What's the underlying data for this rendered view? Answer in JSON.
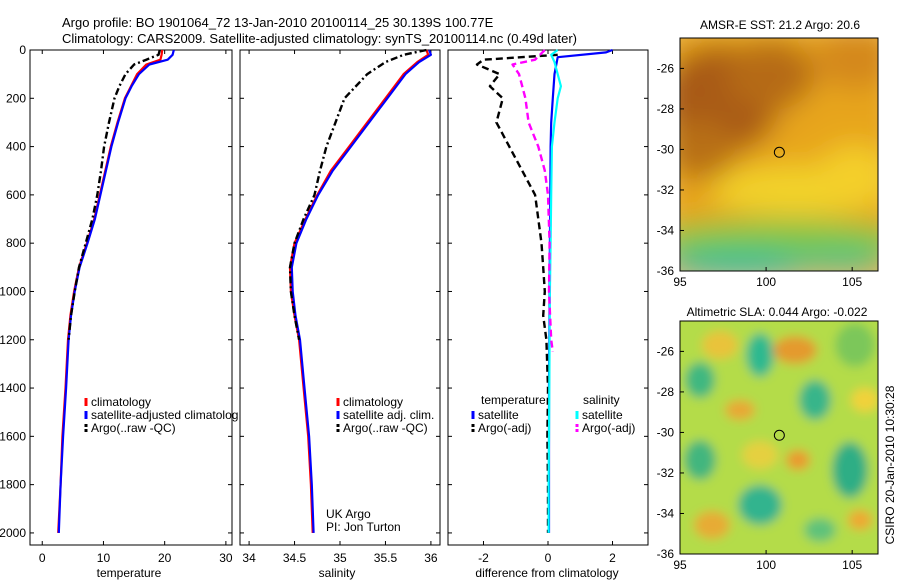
{
  "header": {
    "line1": "Argo profile: BO 1901064_72 13-Jan-2010 20100114_25 30.139S 100.77E",
    "line2": "Climatology: CARS2009. Satellite-adjusted climatology: synTS_20100114.nc (0.49d later)"
  },
  "side_label": "CSIRO 20-Jan-2010 10:30:28",
  "colors": {
    "climatology": "#ff0000",
    "satellite": "#0000ff",
    "argo": "#000000",
    "sat_salinity": "#00ffff",
    "argo_salinity": "#ff00ff"
  },
  "chart_data": [
    {
      "type": "line",
      "xlabel": "temperature",
      "xlim": [
        -2,
        31
      ],
      "ylim": [
        2050,
        0
      ],
      "xticks": [
        0,
        10,
        20,
        30
      ],
      "yticks": [
        0,
        200,
        400,
        600,
        800,
        1000,
        1200,
        1400,
        1600,
        1800,
        2000
      ],
      "legend": {
        "placement": "center-left",
        "entries": [
          "climatology",
          "satellite-adjusted climatolog",
          "Argo(..raw -QC)"
        ]
      },
      "series": [
        {
          "name": "climatology",
          "color": "#ff0000",
          "style": "solid",
          "points": [
            [
              19.6,
              0
            ],
            [
              19.5,
              20
            ],
            [
              19.3,
              40
            ],
            [
              17.0,
              60
            ],
            [
              15.5,
              100
            ],
            [
              14.5,
              150
            ],
            [
              13.5,
              200
            ],
            [
              12.3,
              300
            ],
            [
              11.2,
              400
            ],
            [
              10.3,
              500
            ],
            [
              9.4,
              600
            ],
            [
              8.5,
              700
            ],
            [
              7.3,
              800
            ],
            [
              6.0,
              900
            ],
            [
              5.2,
              1000
            ],
            [
              4.6,
              1100
            ],
            [
              4.2,
              1200
            ],
            [
              3.8,
              1400
            ],
            [
              3.3,
              1600
            ],
            [
              3.0,
              1800
            ],
            [
              2.6,
              2000
            ]
          ]
        },
        {
          "name": "satellite-adjusted climatolog",
          "color": "#0000ff",
          "style": "solid",
          "points": [
            [
              21.5,
              0
            ],
            [
              21.3,
              20
            ],
            [
              20.5,
              40
            ],
            [
              17.5,
              60
            ],
            [
              15.8,
              100
            ],
            [
              14.6,
              150
            ],
            [
              13.6,
              200
            ],
            [
              12.4,
              300
            ],
            [
              11.3,
              400
            ],
            [
              10.4,
              500
            ],
            [
              9.5,
              600
            ],
            [
              8.6,
              700
            ],
            [
              7.4,
              800
            ],
            [
              6.1,
              900
            ],
            [
              5.3,
              1000
            ],
            [
              4.7,
              1100
            ],
            [
              4.3,
              1200
            ],
            [
              3.9,
              1400
            ],
            [
              3.4,
              1600
            ],
            [
              3.0,
              1800
            ],
            [
              2.7,
              2000
            ]
          ]
        },
        {
          "name": "Argo(..raw -QC)",
          "color": "#000000",
          "style": "dashdot",
          "points": [
            [
              19.2,
              0
            ],
            [
              19.0,
              20
            ],
            [
              17.0,
              40
            ],
            [
              15.0,
              60
            ],
            [
              13.6,
              100
            ],
            [
              12.6,
              150
            ],
            [
              11.8,
              200
            ],
            [
              10.9,
              300
            ],
            [
              10.1,
              400
            ],
            [
              9.6,
              500
            ],
            [
              9.0,
              600
            ],
            [
              8.2,
              700
            ],
            [
              7.1,
              800
            ],
            [
              6.0,
              900
            ],
            [
              5.3,
              1000
            ],
            [
              4.7,
              1100
            ],
            [
              4.3,
              1200
            ]
          ]
        }
      ]
    },
    {
      "type": "line",
      "xlabel": "salinity",
      "xlim": [
        33.9,
        36.1
      ],
      "ylim": [
        2050,
        0
      ],
      "xticks": [
        34,
        34.5,
        35,
        35.5,
        36
      ],
      "legend": {
        "placement": "center-left",
        "entries": [
          "climatology",
          "satellite adj. clim.",
          "Argo(..raw -QC)"
        ]
      },
      "annotation": [
        "UK Argo",
        "PI: Jon Turton"
      ],
      "series": [
        {
          "name": "climatology",
          "color": "#ff0000",
          "style": "solid",
          "points": [
            [
              35.95,
              0
            ],
            [
              35.97,
              20
            ],
            [
              35.85,
              50
            ],
            [
              35.7,
              100
            ],
            [
              35.5,
              200
            ],
            [
              35.3,
              300
            ],
            [
              35.1,
              400
            ],
            [
              34.9,
              500
            ],
            [
              34.75,
              600
            ],
            [
              34.62,
              700
            ],
            [
              34.5,
              800
            ],
            [
              34.45,
              900
            ],
            [
              34.46,
              1000
            ],
            [
              34.5,
              1100
            ],
            [
              34.55,
              1200
            ],
            [
              34.6,
              1400
            ],
            [
              34.65,
              1600
            ],
            [
              34.68,
              1800
            ],
            [
              34.7,
              2000
            ]
          ]
        },
        {
          "name": "satellite adj. clim.",
          "color": "#0000ff",
          "style": "solid",
          "points": [
            [
              35.98,
              0
            ],
            [
              36.0,
              20
            ],
            [
              35.87,
              50
            ],
            [
              35.72,
              100
            ],
            [
              35.52,
              200
            ],
            [
              35.32,
              300
            ],
            [
              35.12,
              400
            ],
            [
              34.92,
              500
            ],
            [
              34.76,
              600
            ],
            [
              34.63,
              700
            ],
            [
              34.52,
              800
            ],
            [
              34.47,
              900
            ],
            [
              34.48,
              1000
            ],
            [
              34.51,
              1100
            ],
            [
              34.56,
              1200
            ],
            [
              34.61,
              1400
            ],
            [
              34.66,
              1600
            ],
            [
              34.69,
              1800
            ],
            [
              34.71,
              2000
            ]
          ]
        },
        {
          "name": "Argo(..raw -QC)",
          "color": "#000000",
          "style": "dashdot",
          "points": [
            [
              35.95,
              0
            ],
            [
              35.7,
              20
            ],
            [
              35.5,
              50
            ],
            [
              35.3,
              100
            ],
            [
              35.05,
              200
            ],
            [
              34.95,
              300
            ],
            [
              34.85,
              400
            ],
            [
              34.78,
              500
            ],
            [
              34.72,
              600
            ],
            [
              34.6,
              700
            ],
            [
              34.5,
              800
            ],
            [
              34.45,
              900
            ],
            [
              34.46,
              1000
            ],
            [
              34.5,
              1100
            ],
            [
              34.55,
              1200
            ]
          ]
        }
      ]
    },
    {
      "type": "line",
      "xlabel": "difference from climatology",
      "xlim": [
        -3.1,
        3.1
      ],
      "ylim": [
        2050,
        0
      ],
      "xticks": [
        -2,
        0,
        2
      ],
      "legend": {
        "placement": "center",
        "entries": [
          "temperature",
          "satellite",
          "Argo(-adj)",
          "salinity",
          "satellite",
          "Argo(-adj)"
        ]
      },
      "series": [
        {
          "name": "satellite",
          "color": "#0000ff",
          "style": "solid",
          "group": "temperature",
          "points": [
            [
              2.0,
              0
            ],
            [
              1.8,
              10
            ],
            [
              0.3,
              30
            ],
            [
              0.2,
              100
            ],
            [
              0.15,
              200
            ],
            [
              0.1,
              300
            ],
            [
              0.08,
              400
            ],
            [
              0.07,
              600
            ],
            [
              0.06,
              800
            ],
            [
              0.05,
              1000
            ],
            [
              0.04,
              1200
            ],
            [
              0.03,
              1400
            ],
            [
              0.03,
              1600
            ],
            [
              0.03,
              1800
            ],
            [
              0.03,
              2000
            ]
          ]
        },
        {
          "name": "Argo(-adj)",
          "color": "#000000",
          "style": "dashed",
          "group": "temperature",
          "points": [
            [
              0.3,
              20
            ],
            [
              -2.0,
              40
            ],
            [
              -2.2,
              60
            ],
            [
              -1.5,
              100
            ],
            [
              -1.8,
              150
            ],
            [
              -1.4,
              200
            ],
            [
              -1.6,
              300
            ],
            [
              -1.2,
              400
            ],
            [
              -0.8,
              500
            ],
            [
              -0.4,
              600
            ],
            [
              -0.3,
              700
            ],
            [
              -0.2,
              800
            ],
            [
              -0.15,
              900
            ],
            [
              -0.1,
              1000
            ],
            [
              -0.15,
              1100
            ],
            [
              -0.05,
              1200
            ],
            [
              0.0,
              1400
            ],
            [
              -0.02,
              1600
            ],
            [
              0.0,
              1800
            ],
            [
              0.0,
              2000
            ]
          ]
        },
        {
          "name": "satellite",
          "color": "#00ffff",
          "style": "solid",
          "group": "salinity",
          "points": [
            [
              0.3,
              0
            ],
            [
              0.1,
              20
            ],
            [
              0.2,
              50
            ],
            [
              0.4,
              150
            ],
            [
              0.3,
              200
            ],
            [
              0.2,
              300
            ],
            [
              0.12,
              400
            ],
            [
              0.1,
              600
            ],
            [
              0.08,
              800
            ],
            [
              0.06,
              1000
            ],
            [
              0.05,
              1200
            ],
            [
              0.04,
              1400
            ],
            [
              0.03,
              1600
            ],
            [
              0.02,
              1800
            ],
            [
              0.02,
              2000
            ]
          ]
        },
        {
          "name": "Argo(-adj)",
          "color": "#ff00ff",
          "style": "dashed",
          "group": "salinity",
          "points": [
            [
              -0.1,
              0
            ],
            [
              -0.4,
              40
            ],
            [
              -1.1,
              60
            ],
            [
              -0.9,
              100
            ],
            [
              -0.7,
              200
            ],
            [
              -0.6,
              300
            ],
            [
              -0.3,
              400
            ],
            [
              -0.1,
              500
            ],
            [
              0.0,
              600
            ],
            [
              0.05,
              800
            ],
            [
              0.03,
              1000
            ],
            [
              0.1,
              1200
            ],
            [
              0.15,
              1250
            ]
          ]
        }
      ]
    },
    {
      "type": "heatmap",
      "title": "AMSR-E SST: 21.2 Argo: 20.6",
      "xlim": [
        95,
        106.5
      ],
      "ylim": [
        -36,
        -24.5
      ],
      "xticks": [
        95,
        100,
        105
      ],
      "yticks": [
        -26,
        -28,
        -30,
        -32,
        -34,
        -36
      ],
      "marker": {
        "lon": 100.77,
        "lat": -30.14
      }
    },
    {
      "type": "heatmap",
      "title": "Altimetric SLA: 0.044 Argo: -0.022",
      "xlim": [
        95,
        106.5
      ],
      "ylim": [
        -36,
        -24.5
      ],
      "xticks": [
        95,
        100,
        105
      ],
      "yticks": [
        -26,
        -28,
        -30,
        -32,
        -34,
        -36
      ],
      "marker": {
        "lon": 100.77,
        "lat": -30.14
      }
    }
  ]
}
